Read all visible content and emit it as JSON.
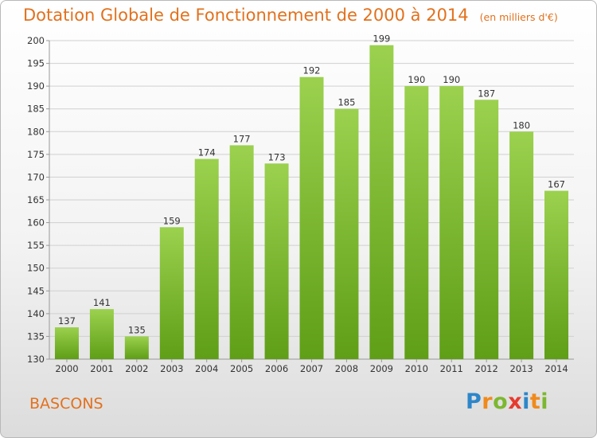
{
  "header": {
    "title": "Dotation Globale de Fonctionnement de 2000 à 2014",
    "unit": "(en milliers d'€)"
  },
  "footer": {
    "commune": "BASCONS",
    "logo_text": "Proxiti"
  },
  "colors": {
    "title": "#e2711d",
    "bar_light": "#9bd14e",
    "bar_dark": "#5f9e17",
    "grid": "#d0d0d0"
  },
  "chart_data": {
    "type": "bar",
    "title": "Dotation Globale de Fonctionnement de 2000 à 2014",
    "subtitle": "(en milliers d'€)",
    "xlabel": "",
    "ylabel": "",
    "categories": [
      "2000",
      "2001",
      "2002",
      "2003",
      "2004",
      "2005",
      "2006",
      "2007",
      "2008",
      "2009",
      "2010",
      "2011",
      "2012",
      "2013",
      "2014"
    ],
    "values": [
      137,
      141,
      135,
      159,
      174,
      177,
      173,
      192,
      185,
      199,
      190,
      190,
      187,
      180,
      167
    ],
    "ylim": [
      130,
      200
    ],
    "yticks": [
      130,
      135,
      140,
      145,
      150,
      155,
      160,
      165,
      170,
      175,
      180,
      185,
      190,
      195,
      200
    ],
    "grid": true,
    "legend": "none"
  }
}
